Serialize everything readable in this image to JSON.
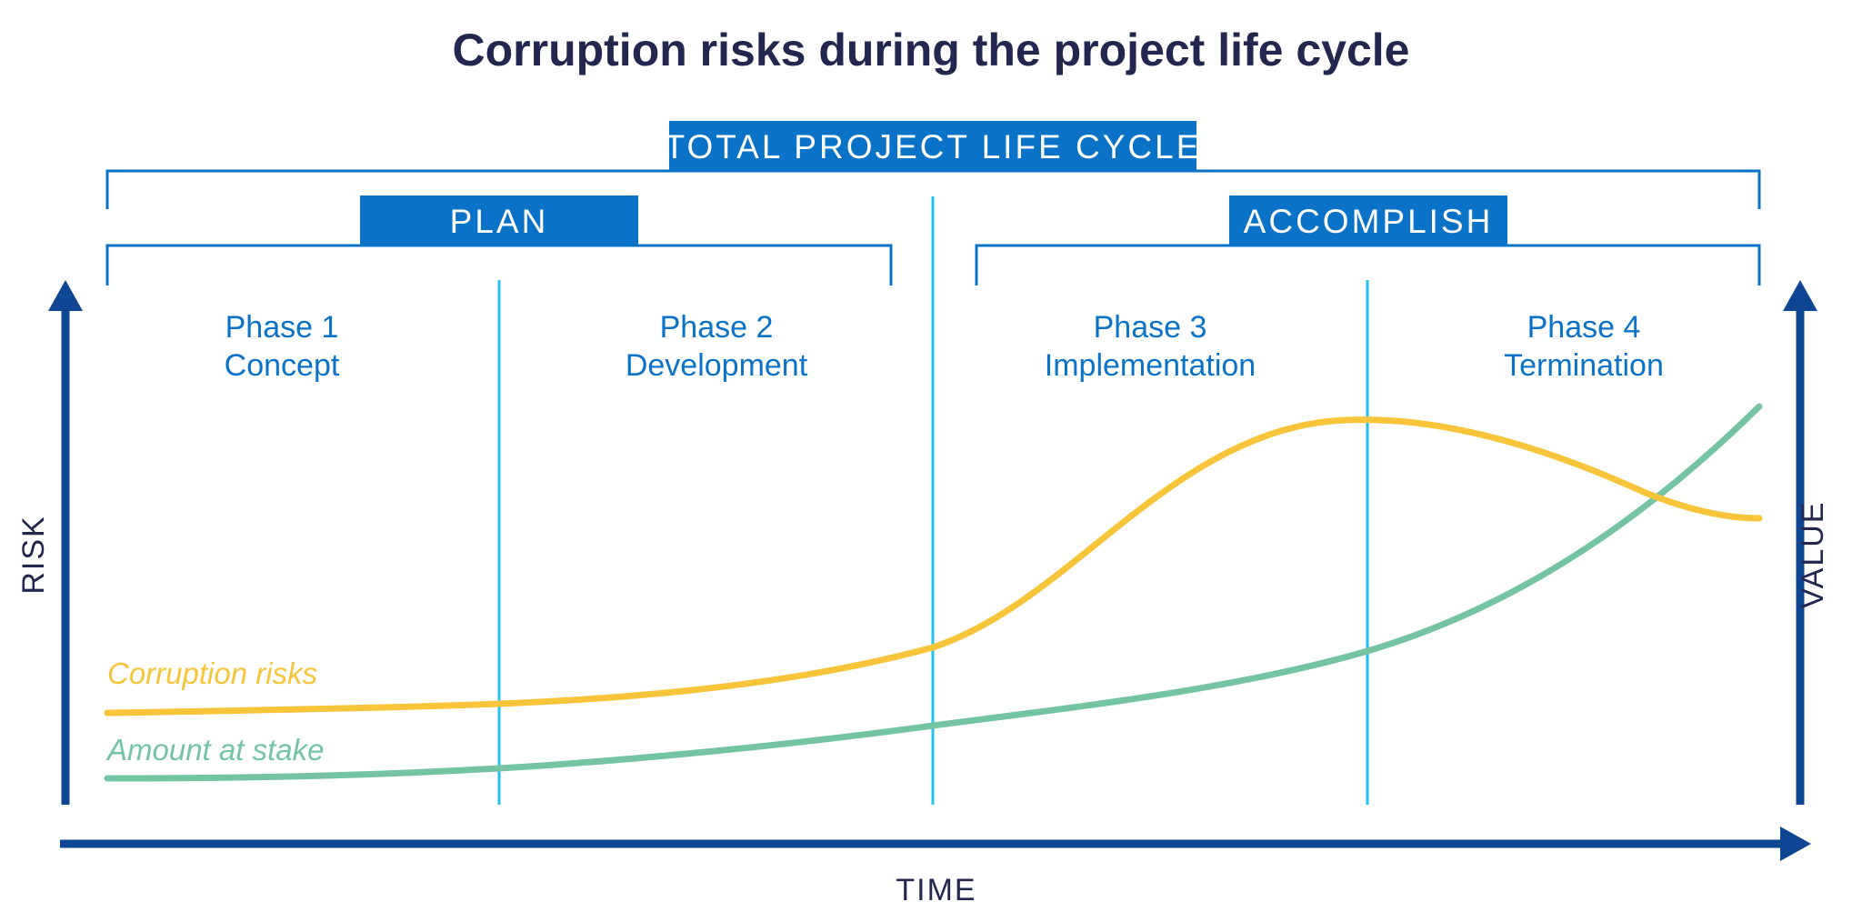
{
  "title": "Corruption risks during the project life cycle",
  "colors": {
    "title": "#23264f",
    "box_fill": "#0a73c8",
    "bracket": "#0a73c8",
    "phase_text": "#0a73c8",
    "divider": "#22c0ee",
    "axis": "#0f4694",
    "axis_text": "#23264f",
    "risk_curve": "#f8c43a",
    "value_curve": "#74c4a4"
  },
  "brackets": {
    "total": "TOTAL PROJECT LIFE CYCLE",
    "plan": "PLAN",
    "accomplish": "ACCOMPLISH"
  },
  "phases": [
    {
      "number": "Phase 1",
      "name": "Concept"
    },
    {
      "number": "Phase 2",
      "name": "Development"
    },
    {
      "number": "Phase 3",
      "name": "Implementation"
    },
    {
      "number": "Phase 4",
      "name": "Termination"
    }
  ],
  "axes": {
    "left": "RISK",
    "right": "VALUE",
    "bottom": "TIME"
  },
  "series": [
    {
      "name": "Corruption risks",
      "icon": "yellow-curve"
    },
    {
      "name": "Amount at stake",
      "icon": "green-curve"
    }
  ]
}
